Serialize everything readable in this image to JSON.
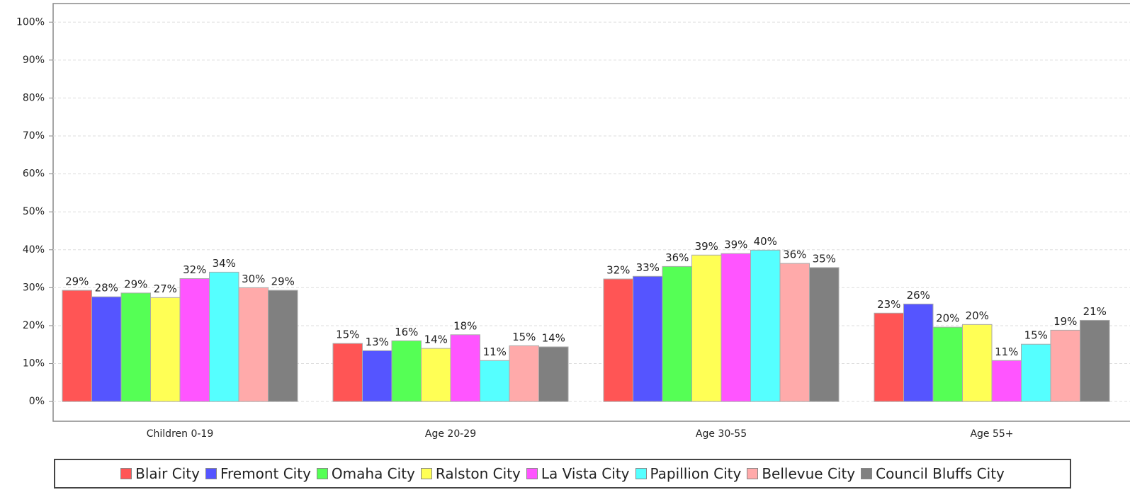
{
  "chart_data": {
    "type": "bar",
    "categories": [
      "Children 0-19",
      "Age 20-29",
      "Age 30-55",
      "Age 55+"
    ],
    "series": [
      {
        "name": "Blair City",
        "color": "#ff5555",
        "values": [
          29.3,
          15.3,
          32.3,
          23.3
        ],
        "value_labels": [
          "29%",
          "15%",
          "32%",
          "23%"
        ]
      },
      {
        "name": "Fremont City",
        "color": "#5555ff",
        "values": [
          27.6,
          13.4,
          33.0,
          25.7
        ],
        "value_labels": [
          "28%",
          "13%",
          "33%",
          "26%"
        ]
      },
      {
        "name": "Omaha City",
        "color": "#55ff55",
        "values": [
          28.6,
          16.0,
          35.6,
          19.6
        ],
        "value_labels": [
          "29%",
          "16%",
          "36%",
          "20%"
        ]
      },
      {
        "name": "Ralston City",
        "color": "#ffff55",
        "values": [
          27.4,
          14.0,
          38.6,
          20.3
        ],
        "value_labels": [
          "27%",
          "14%",
          "39%",
          "20%"
        ]
      },
      {
        "name": "La Vista City",
        "color": "#ff55ff",
        "values": [
          32.4,
          17.6,
          39.0,
          10.8
        ],
        "value_labels": [
          "32%",
          "18%",
          "39%",
          "11%"
        ]
      },
      {
        "name": "Papillion City",
        "color": "#55ffff",
        "values": [
          34.1,
          10.8,
          39.9,
          15.1
        ],
        "value_labels": [
          "34%",
          "11%",
          "40%",
          "15%"
        ]
      },
      {
        "name": "Bellevue City",
        "color": "#ffaaaa",
        "values": [
          30.0,
          14.7,
          36.4,
          18.8
        ],
        "value_labels": [
          "30%",
          "15%",
          "36%",
          "19%"
        ]
      },
      {
        "name": "Council Bluffs City",
        "color": "#808080",
        "values": [
          29.3,
          14.4,
          35.3,
          21.4
        ],
        "value_labels": [
          "29%",
          "14%",
          "35%",
          "21%"
        ]
      }
    ],
    "ylim": [
      -5.2,
      104.9
    ],
    "yticks": [
      {
        "value": 0,
        "label": "0%"
      },
      {
        "value": 10,
        "label": "10%"
      },
      {
        "value": 20,
        "label": "20%"
      },
      {
        "value": 30,
        "label": "30%"
      },
      {
        "value": 40,
        "label": "40%"
      },
      {
        "value": 50,
        "label": "50%"
      },
      {
        "value": 60,
        "label": "60%"
      },
      {
        "value": 70,
        "label": "70%"
      },
      {
        "value": 80,
        "label": "80%"
      },
      {
        "value": 90,
        "label": "90%"
      },
      {
        "value": 100,
        "label": "100%"
      }
    ],
    "grid": true,
    "legend": "bottom"
  }
}
